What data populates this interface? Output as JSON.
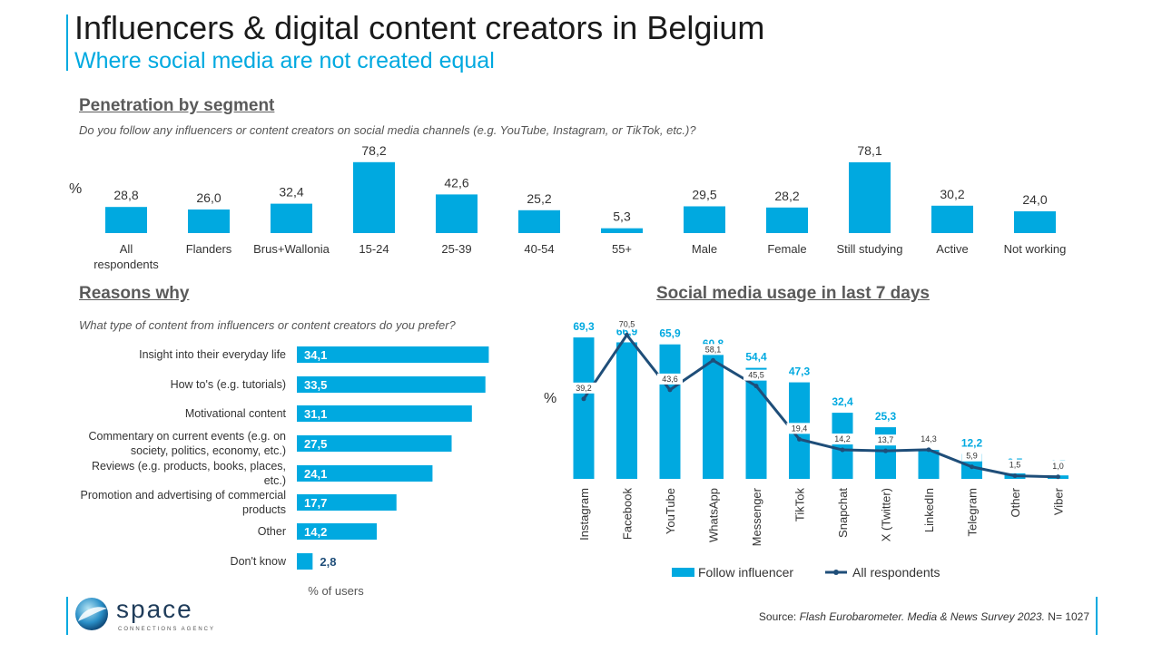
{
  "header": {
    "title": "Influencers & digital content creators in Belgium",
    "subtitle": "Where social media are not created equal"
  },
  "section_penetration": {
    "heading": "Penetration by segment",
    "question": "Do you follow any influencers or content creators on social media channels (e.g. YouTube, Instagram, or TikTok, etc.)?",
    "unit_symbol": "%"
  },
  "section_reasons": {
    "heading": "Reasons why",
    "question": "What type of content from influencers or content creators do you prefer?",
    "axis_label": "% of users"
  },
  "section_social": {
    "heading": "Social media usage in last 7 days",
    "unit_symbol": "%"
  },
  "footer": {
    "logo_name": "space",
    "logo_tagline": "CONNECTIONS AGENCY",
    "source_label": "Source: ",
    "source_title": "Flash Eurobarometer. Media & News Survey 2023.",
    "source_n": " N= 1027"
  },
  "colors": {
    "bar": "#00a9e0",
    "line": "#1f4e79",
    "accent": "#00a9e0",
    "label_dark": "#1f4e79"
  },
  "chart_data": [
    {
      "type": "bar",
      "title": "Penetration by segment",
      "ylabel": "%",
      "ylim": [
        0,
        100
      ],
      "categories": [
        "All respondents",
        "Flanders",
        "Brus+Wallonia",
        "15-24",
        "25-39",
        "40-54",
        "55+",
        "Male",
        "Female",
        "Still studying",
        "Active",
        "Not working"
      ],
      "category_lines": [
        [
          "All",
          "respondents"
        ],
        [
          "Flanders"
        ],
        [
          "Brus+Wallonia"
        ],
        [
          "15-24"
        ],
        [
          "25-39"
        ],
        [
          "40-54"
        ],
        [
          "55+"
        ],
        [
          "Male"
        ],
        [
          "Female"
        ],
        [
          "Still studying"
        ],
        [
          "Active"
        ],
        [
          "Not working"
        ]
      ],
      "values": [
        28.8,
        26.0,
        32.4,
        78.2,
        42.6,
        25.2,
        5.3,
        29.5,
        28.2,
        78.1,
        30.2,
        24.0
      ],
      "value_labels": [
        "28,8",
        "26,0",
        "32,4",
        "78,2",
        "42,6",
        "25,2",
        "5,3",
        "29,5",
        "28,2",
        "78,1",
        "30,2",
        "24,0"
      ]
    },
    {
      "type": "bar",
      "orientation": "horizontal",
      "title": "Reasons why",
      "xlabel": "% of users",
      "xlim": [
        0,
        40
      ],
      "categories": [
        "Insight into their everyday life",
        "How to's (e.g. tutorials)",
        "Motivational content",
        "Commentary on current events (e.g. on society, politics, economy, etc.)",
        "Reviews (e.g. products, books, places, etc.)",
        "Promotion and advertising of commercial products",
        "Other",
        "Don't know"
      ],
      "category_lines": [
        [
          "Insight into their everyday life"
        ],
        [
          "How to's (e.g. tutorials)"
        ],
        [
          "Motivational content"
        ],
        [
          "Commentary on current events (e.g. on",
          "society, politics, economy, etc.)"
        ],
        [
          "Reviews (e.g. products, books, places,",
          "etc.)"
        ],
        [
          "Promotion and advertising of commercial",
          "products"
        ],
        [
          "Other"
        ],
        [
          "Don't know"
        ]
      ],
      "values": [
        34.1,
        33.5,
        31.1,
        27.5,
        24.1,
        17.7,
        14.2,
        2.8
      ],
      "value_labels": [
        "34,1",
        "33,5",
        "31,1",
        "27,5",
        "24,1",
        "17,7",
        "14,2",
        "2,8"
      ]
    },
    {
      "type": "bar",
      "title": "Social media usage in last 7 days",
      "ylabel": "%",
      "ylim": [
        0,
        75
      ],
      "categories": [
        "Instagram",
        "Facebook",
        "YouTube",
        "WhatsApp",
        "Messenger",
        "TikTok",
        "Snapchat",
        "X (Twitter)",
        "LinkedIn",
        "Telegram",
        "Other",
        "Viber"
      ],
      "legend_position": "bottom",
      "series": [
        {
          "name": "Follow influencer",
          "type": "bar",
          "values": [
            69.3,
            66.9,
            65.9,
            60.8,
            54.4,
            47.3,
            32.4,
            25.3,
            14.2,
            12.2,
            2.7,
            1.7
          ],
          "value_labels": [
            "69,3",
            "66,9",
            "65,9",
            "60,8",
            "54,4",
            "47,3",
            "32,4",
            "25,3",
            "14,2",
            "12,2",
            "2,7",
            "1,7"
          ]
        },
        {
          "name": "All respondents",
          "type": "line",
          "values": [
            39.2,
            70.5,
            43.6,
            58.1,
            45.5,
            19.4,
            14.2,
            13.7,
            14.3,
            5.9,
            1.5,
            1.0
          ],
          "value_labels": [
            "39,2",
            "70,5",
            "43,6",
            "58,1",
            "45,5",
            "19,4",
            "14,2",
            "13,7",
            "14,3",
            "5,9",
            "1,5",
            "1,0"
          ]
        }
      ]
    }
  ]
}
